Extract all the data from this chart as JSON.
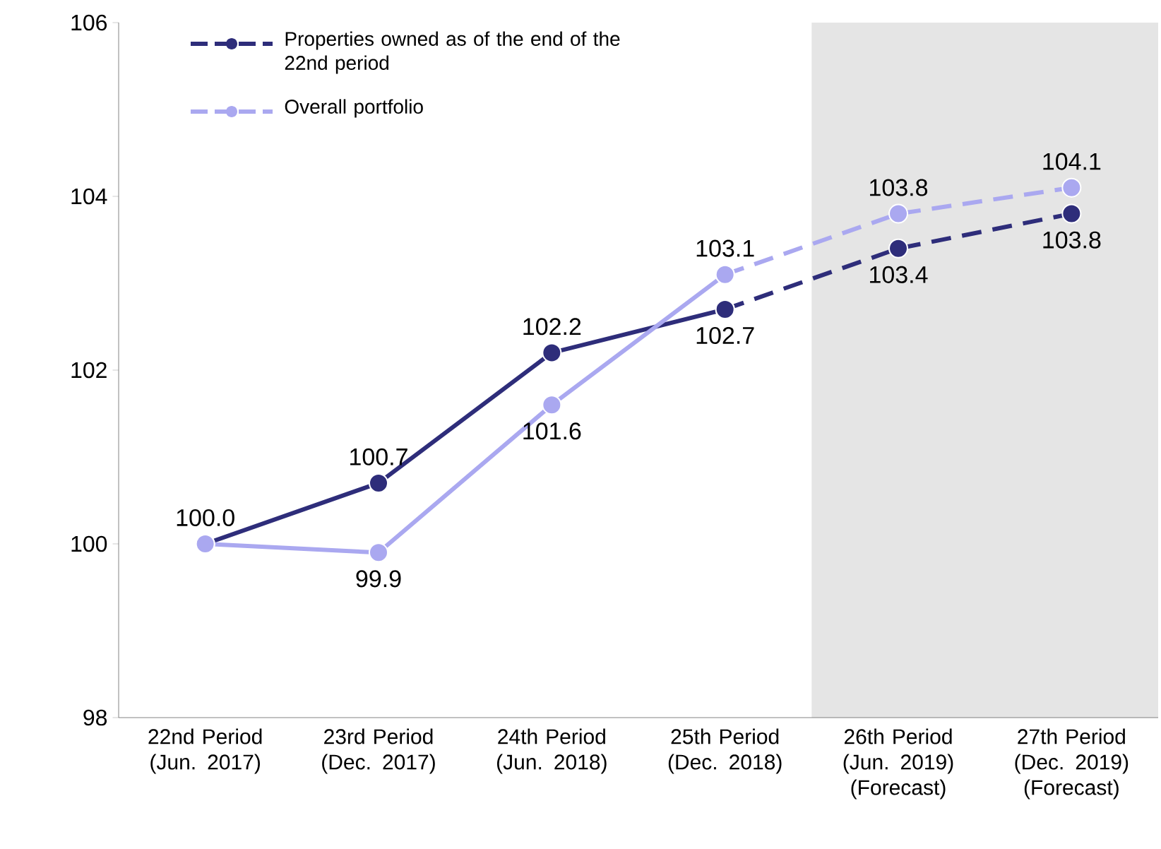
{
  "chart_data": {
    "type": "line",
    "categories": [
      "22nd Period (Jun. 2017)",
      "23rd Period (Dec. 2017)",
      "24th Period (Jun. 2018)",
      "25th Period (Dec. 2018)",
      "26th Period (Jun. 2019) (Forecast)",
      "27th Period (Dec. 2019) (Forecast)"
    ],
    "series": [
      {
        "name": "Properties owned as of the end of the 22nd period",
        "color": "#2e2d7a",
        "line_style": "solid",
        "values": [
          100.0,
          100.7,
          102.2,
          102.7,
          null,
          null
        ],
        "value_labels": [
          "100.0",
          "100.7",
          "102.2",
          "102.7",
          null,
          null
        ]
      },
      {
        "name": "Overall portfolio",
        "color": "#aaa8f0",
        "line_style": "solid",
        "values": [
          100.0,
          99.9,
          101.6,
          103.1,
          null,
          null
        ],
        "value_labels": [
          null,
          "99.9",
          "101.6",
          "103.1",
          null,
          null
        ]
      },
      {
        "color": "#2e2d7a",
        "line_style": "dashed",
        "values": [
          null,
          null,
          null,
          102.7,
          103.4,
          103.8
        ],
        "value_labels": [
          null,
          null,
          null,
          null,
          "103.4",
          "103.8"
        ]
      },
      {
        "color": "#aaa8f0",
        "line_style": "dashed",
        "values": [
          null,
          null,
          null,
          103.1,
          103.8,
          104.1
        ],
        "value_labels": [
          null,
          null,
          null,
          null,
          "103.8",
          "104.1"
        ]
      }
    ],
    "ylim": [
      98,
      106
    ],
    "yticks": [
      98,
      100,
      102,
      104,
      106
    ],
    "marker": "circle",
    "grid": false,
    "legend": "top left"
  }
}
